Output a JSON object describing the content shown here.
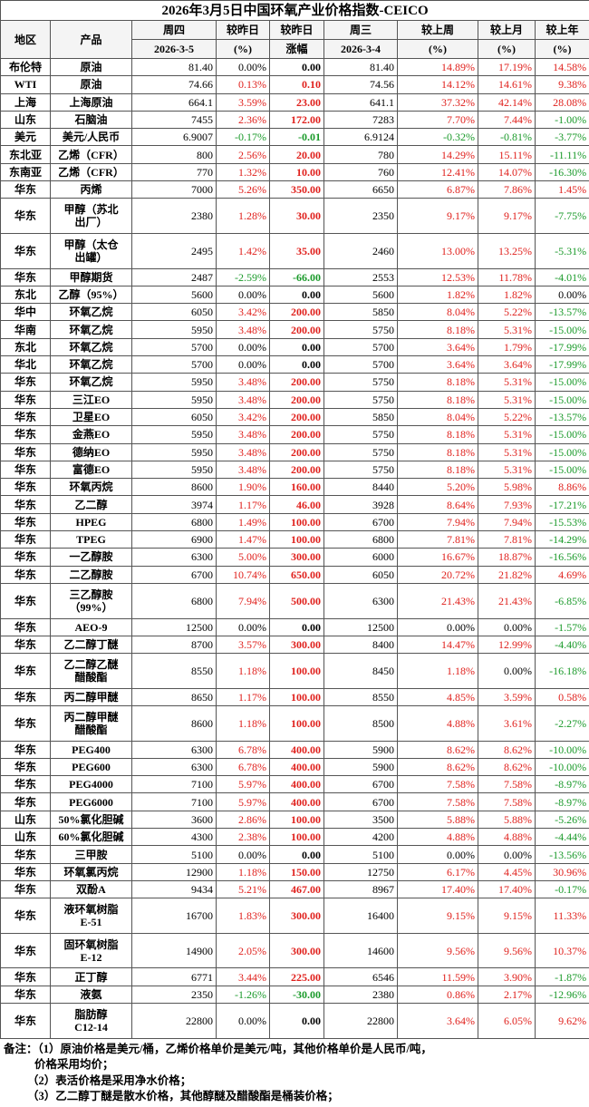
{
  "title": "2026年3月5日中国环氧产业价格指数-CEICO",
  "header": {
    "rows": [
      [
        "地区",
        "产品",
        "周四",
        "较昨日",
        "较昨日",
        "周三",
        "较上周",
        "较上月",
        "较上年"
      ],
      [
        "2026-3-5",
        "(%)",
        "涨幅",
        "2026-3-4",
        "(%)",
        "(%)",
        "(%)"
      ]
    ]
  },
  "table": {
    "rows": [
      [
        "布伦特",
        "原油",
        "81.40",
        "0.00%",
        "0.00",
        "81.40",
        "14.89%",
        "17.19%",
        "14.58%"
      ],
      [
        "WTI",
        "原油",
        "74.66",
        "0.13%",
        "0.10",
        "74.56",
        "14.12%",
        "14.61%",
        "9.38%"
      ],
      [
        "上海",
        "上海原油",
        "664.1",
        "3.59%",
        "23.00",
        "641.1",
        "37.32%",
        "42.14%",
        "28.08%"
      ],
      [
        "山东",
        "石脑油",
        "7455",
        "2.36%",
        "172.00",
        "7283",
        "7.70%",
        "7.44%",
        "-1.00%"
      ],
      [
        "美元",
        "美元/人民币",
        "6.9007",
        "-0.17%",
        "-0.01",
        "6.9124",
        "-0.32%",
        "-0.81%",
        "-3.77%"
      ],
      [
        "东北亚",
        "乙烯（CFR）",
        "800",
        "2.56%",
        "20.00",
        "780",
        "14.29%",
        "15.11%",
        "-11.11%"
      ],
      [
        "东南亚",
        "乙烯（CFR）",
        "770",
        "1.32%",
        "10.00",
        "760",
        "12.41%",
        "14.07%",
        "-16.30%"
      ],
      [
        "华东",
        "丙烯",
        "7000",
        "5.26%",
        "350.00",
        "6650",
        "6.87%",
        "7.86%",
        "1.45%"
      ],
      [
        "华东",
        "甲醇（苏北\n出厂）",
        "2380",
        "1.28%",
        "30.00",
        "2350",
        "9.17%",
        "9.17%",
        "-7.75%"
      ],
      [
        "华东",
        "甲醇（太仓\n出罐）",
        "2495",
        "1.42%",
        "35.00",
        "2460",
        "13.00%",
        "13.25%",
        "-5.31%"
      ],
      [
        "华东",
        "甲醇期货",
        "2487",
        "-2.59%",
        "-66.00",
        "2553",
        "12.53%",
        "11.78%",
        "-4.01%"
      ],
      [
        "东北",
        "乙醇（95%）",
        "5600",
        "0.00%",
        "0.00",
        "5600",
        "1.82%",
        "1.82%",
        "0.00%"
      ],
      [
        "华中",
        "环氧乙烷",
        "6050",
        "3.42%",
        "200.00",
        "5850",
        "8.04%",
        "5.22%",
        "-13.57%"
      ],
      [
        "华南",
        "环氧乙烷",
        "5950",
        "3.48%",
        "200.00",
        "5750",
        "8.18%",
        "5.31%",
        "-15.00%"
      ],
      [
        "东北",
        "环氧乙烷",
        "5700",
        "0.00%",
        "0.00",
        "5700",
        "3.64%",
        "1.79%",
        "-17.99%"
      ],
      [
        "华北",
        "环氧乙烷",
        "5700",
        "0.00%",
        "0.00",
        "5700",
        "3.64%",
        "3.64%",
        "-17.99%"
      ],
      [
        "华东",
        "环氧乙烷",
        "5950",
        "3.48%",
        "200.00",
        "5750",
        "8.18%",
        "5.31%",
        "-15.00%"
      ],
      [
        "华东",
        "三江EO",
        "5950",
        "3.48%",
        "200.00",
        "5750",
        "8.18%",
        "5.31%",
        "-15.00%"
      ],
      [
        "华东",
        "卫星EO",
        "6050",
        "3.42%",
        "200.00",
        "5850",
        "8.04%",
        "5.22%",
        "-13.57%"
      ],
      [
        "华东",
        "金燕EO",
        "5950",
        "3.48%",
        "200.00",
        "5750",
        "8.18%",
        "5.31%",
        "-15.00%"
      ],
      [
        "华东",
        "德纳EO",
        "5950",
        "3.48%",
        "200.00",
        "5750",
        "8.18%",
        "5.31%",
        "-15.00%"
      ],
      [
        "华东",
        "富德EO",
        "5950",
        "3.48%",
        "200.00",
        "5750",
        "8.18%",
        "5.31%",
        "-15.00%"
      ],
      [
        "华东",
        "环氧丙烷",
        "8600",
        "1.90%",
        "160.00",
        "8440",
        "5.20%",
        "5.98%",
        "8.86%"
      ],
      [
        "华东",
        "乙二醇",
        "3974",
        "1.17%",
        "46.00",
        "3928",
        "8.64%",
        "7.93%",
        "-17.21%"
      ],
      [
        "华东",
        "HPEG",
        "6800",
        "1.49%",
        "100.00",
        "6700",
        "7.94%",
        "7.94%",
        "-15.53%"
      ],
      [
        "华东",
        "TPEG",
        "6900",
        "1.47%",
        "100.00",
        "6800",
        "7.81%",
        "7.81%",
        "-14.29%"
      ],
      [
        "华东",
        "一乙醇胺",
        "6300",
        "5.00%",
        "300.00",
        "6000",
        "16.67%",
        "18.87%",
        "-16.56%"
      ],
      [
        "华东",
        "二乙醇胺",
        "6700",
        "10.74%",
        "650.00",
        "6050",
        "20.72%",
        "21.82%",
        "4.69%"
      ],
      [
        "华东",
        "三乙醇胺\n（99%）",
        "6800",
        "7.94%",
        "500.00",
        "6300",
        "21.43%",
        "21.43%",
        "-6.85%"
      ],
      [
        "华东",
        "AEO-9",
        "12500",
        "0.00%",
        "0.00",
        "12500",
        "0.00%",
        "0.00%",
        "-1.57%"
      ],
      [
        "华东",
        "乙二醇丁醚",
        "8700",
        "3.57%",
        "300.00",
        "8400",
        "14.47%",
        "12.99%",
        "-4.40%"
      ],
      [
        "华东",
        "乙二醇乙醚\n醋酸酯",
        "8550",
        "1.18%",
        "100.00",
        "8450",
        "1.18%",
        "0.00%",
        "-16.18%"
      ],
      [
        "华东",
        "丙二醇甲醚",
        "8650",
        "1.17%",
        "100.00",
        "8550",
        "4.85%",
        "3.59%",
        "0.58%"
      ],
      [
        "华东",
        "丙二醇甲醚\n醋酸酯",
        "8600",
        "1.18%",
        "100.00",
        "8500",
        "4.88%",
        "3.61%",
        "-2.27%"
      ],
      [
        "华东",
        "PEG400",
        "6300",
        "6.78%",
        "400.00",
        "5900",
        "8.62%",
        "8.62%",
        "-10.00%"
      ],
      [
        "华东",
        "PEG600",
        "6300",
        "6.78%",
        "400.00",
        "5900",
        "8.62%",
        "8.62%",
        "-10.00%"
      ],
      [
        "华东",
        "PEG4000",
        "7100",
        "5.97%",
        "400.00",
        "6700",
        "7.58%",
        "7.58%",
        "-8.97%"
      ],
      [
        "华东",
        "PEG6000",
        "7100",
        "5.97%",
        "400.00",
        "6700",
        "7.58%",
        "7.58%",
        "-8.97%"
      ],
      [
        "山东",
        "50%氯化胆碱",
        "3600",
        "2.86%",
        "100.00",
        "3500",
        "5.88%",
        "5.88%",
        "-5.26%"
      ],
      [
        "山东",
        "60%氯化胆碱",
        "4300",
        "2.38%",
        "100.00",
        "4200",
        "4.88%",
        "4.88%",
        "-4.44%"
      ],
      [
        "华东",
        "三甲胺",
        "5100",
        "0.00%",
        "0.00",
        "5100",
        "0.00%",
        "0.00%",
        "-13.56%"
      ],
      [
        "华东",
        "环氧氯丙烷",
        "12900",
        "1.18%",
        "150.00",
        "12750",
        "6.17%",
        "4.45%",
        "30.96%"
      ],
      [
        "华东",
        "双酚A",
        "9434",
        "5.21%",
        "467.00",
        "8967",
        "17.40%",
        "17.40%",
        "-0.17%"
      ],
      [
        "华东",
        "液环氧树脂\nE-51",
        "16700",
        "1.83%",
        "300.00",
        "16400",
        "9.15%",
        "9.15%",
        "11.33%"
      ],
      [
        "华东",
        "固环氧树脂\nE-12",
        "14900",
        "2.05%",
        "300.00",
        "14600",
        "9.56%",
        "9.56%",
        "10.37%"
      ],
      [
        "华东",
        "正丁醇",
        "6771",
        "3.44%",
        "225.00",
        "6546",
        "11.59%",
        "3.90%",
        "-1.87%"
      ],
      [
        "华东",
        "液氨",
        "2350",
        "-1.26%",
        "-30.00",
        "2380",
        "0.86%",
        "2.17%",
        "-12.96%"
      ],
      [
        "华东",
        "脂肪醇\nC12-14",
        "22800",
        "0.00%",
        "0.00",
        "22800",
        "3.64%",
        "6.05%",
        "9.62%"
      ]
    ]
  },
  "notes": [
    "备注：（1）原油价格是美元/桶，乙烯价格单价是美元/吨，其他价格单价是人民币/吨，",
    "价格采用均价；",
    "（2）表活价格是采用净水价格；",
    "（3）乙二醇丁醚是散水价格，其他醇醚及醋酸酯是桶装价格；"
  ]
}
